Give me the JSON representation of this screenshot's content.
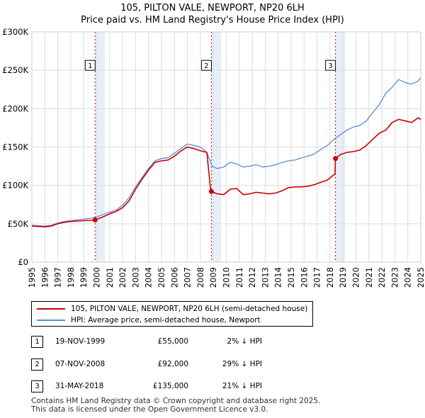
{
  "chart_data": {
    "type": "line",
    "title": "105, PILTON VALE, NEWPORT, NP20 6LH",
    "subtitle": "Price paid vs. HM Land Registry's House Price Index (HPI)",
    "ylim": [
      0,
      300000
    ],
    "xlim": [
      1995,
      2025
    ],
    "y_ticks": [
      0,
      50000,
      100000,
      150000,
      200000,
      250000,
      300000
    ],
    "y_tick_labels": [
      "£0",
      "£50K",
      "£100K",
      "£150K",
      "£200K",
      "£250K",
      "£300K"
    ],
    "x_ticks": [
      1995,
      1996,
      1997,
      1998,
      1999,
      2000,
      2001,
      2002,
      2003,
      2004,
      2005,
      2006,
      2007,
      2008,
      2009,
      2010,
      2011,
      2012,
      2013,
      2014,
      2015,
      2016,
      2017,
      2018,
      2019,
      2020,
      2021,
      2022,
      2023,
      2024,
      2025
    ],
    "grid": true,
    "colors": {
      "property": "#cc0000",
      "hpi": "#5b8fd0",
      "shade": "#e8eef8",
      "vline": "#cc0000"
    },
    "series": [
      {
        "name": "105, PILTON VALE, NEWPORT, NP20 6LH (semi-detached house)",
        "x": [
          1995.0,
          1995.5,
          1996.0,
          1996.5,
          1997.0,
          1997.5,
          1998.0,
          1998.5,
          1999.0,
          1999.5,
          1999.88,
          2000.5,
          2001.0,
          2001.5,
          2002.0,
          2002.5,
          2003.0,
          2003.5,
          2004.0,
          2004.5,
          2005.0,
          2005.5,
          2006.0,
          2006.5,
          2007.0,
          2007.5,
          2008.0,
          2008.5,
          2008.8,
          2008.85,
          2009.3,
          2009.8,
          2010.3,
          2010.8,
          2011.3,
          2011.8,
          2012.3,
          2012.8,
          2013.3,
          2013.8,
          2014.3,
          2014.8,
          2015.3,
          2015.8,
          2016.3,
          2016.8,
          2017.3,
          2017.8,
          2018.38,
          2018.42,
          2018.8,
          2019.3,
          2019.8,
          2020.3,
          2020.8,
          2021.3,
          2021.8,
          2022.3,
          2022.8,
          2023.3,
          2023.8,
          2024.3,
          2024.8,
          2025.0
        ],
        "values": [
          47000,
          46500,
          46000,
          47000,
          50000,
          52000,
          53000,
          53500,
          54000,
          54500,
          55000,
          59000,
          63000,
          66000,
          71000,
          80000,
          95000,
          108000,
          120000,
          130000,
          132000,
          133000,
          138000,
          145000,
          150000,
          148000,
          145000,
          143000,
          92000,
          92000,
          89000,
          88000,
          95000,
          96000,
          88000,
          89000,
          91000,
          90000,
          89000,
          90000,
          93000,
          97000,
          98000,
          98000,
          99000,
          101000,
          104000,
          107000,
          115000,
          135000,
          140000,
          143000,
          144000,
          146000,
          152000,
          160000,
          168000,
          172000,
          182000,
          186000,
          184000,
          182000,
          188000,
          186000
        ]
      },
      {
        "name": "HPI: Average price, semi-detached house, Newport",
        "x": [
          1995.0,
          1995.5,
          1996.0,
          1996.5,
          1997.0,
          1997.5,
          1998.0,
          1998.5,
          1999.0,
          1999.5,
          2000.0,
          2000.5,
          2001.0,
          2001.5,
          2002.0,
          2002.5,
          2003.0,
          2003.5,
          2004.0,
          2004.5,
          2005.0,
          2005.5,
          2006.0,
          2006.5,
          2007.0,
          2007.5,
          2008.0,
          2008.5,
          2008.9,
          2009.3,
          2009.8,
          2010.3,
          2010.8,
          2011.3,
          2011.8,
          2012.3,
          2012.8,
          2013.3,
          2013.8,
          2014.3,
          2014.8,
          2015.3,
          2015.8,
          2016.3,
          2016.8,
          2017.3,
          2017.8,
          2018.3,
          2018.8,
          2019.3,
          2019.8,
          2020.3,
          2020.8,
          2021.3,
          2021.8,
          2022.3,
          2022.8,
          2023.3,
          2023.8,
          2024.3,
          2024.8,
          2025.0
        ],
        "values": [
          48000,
          47500,
          47000,
          48000,
          51000,
          53000,
          54000,
          55000,
          56000,
          57000,
          59000,
          62000,
          65000,
          68000,
          74000,
          84000,
          98000,
          110000,
          122000,
          132000,
          135000,
          136000,
          142000,
          148000,
          154000,
          152000,
          150000,
          143000,
          125000,
          122000,
          124000,
          130000,
          128000,
          124000,
          125000,
          127000,
          124000,
          125000,
          127000,
          130000,
          132000,
          133000,
          136000,
          138000,
          141000,
          147000,
          152000,
          160000,
          166000,
          172000,
          176000,
          178000,
          184000,
          195000,
          205000,
          220000,
          228000,
          238000,
          234000,
          232000,
          236000,
          240000
        ]
      }
    ],
    "transactions": [
      {
        "label": "1",
        "date": "19-NOV-1999",
        "price": "£55,000",
        "hpi": "2% ↓ HPI",
        "x": 1999.88,
        "value": 55000
      },
      {
        "label": "2",
        "date": "07-NOV-2008",
        "price": "£92,000",
        "hpi": "29% ↓ HPI",
        "x": 2008.85,
        "value": 92000
      },
      {
        "label": "3",
        "date": "31-MAY-2018",
        "price": "£135,000",
        "hpi": "21% ↓ HPI",
        "x": 2018.42,
        "value": 135000
      }
    ]
  },
  "legend": {
    "property_label": "105, PILTON VALE, NEWPORT, NP20 6LH (semi-detached house)",
    "hpi_label": "HPI: Average price, semi-detached house, Newport"
  },
  "footer": {
    "line1": "Contains HM Land Registry data © Crown copyright and database right 2025.",
    "line2": "This data is licensed under the Open Government Licence v3.0."
  }
}
